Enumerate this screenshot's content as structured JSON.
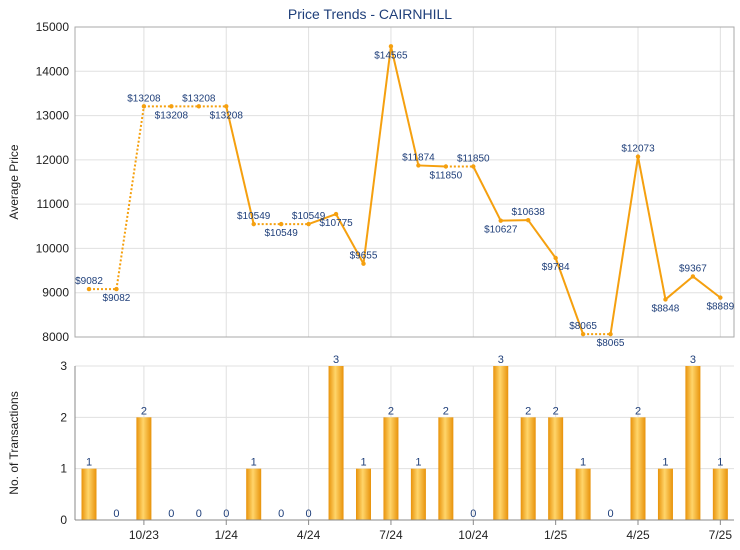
{
  "title": "Price Trends - CAIRNHILL",
  "chart_data": [
    {
      "type": "line",
      "title": "Price Trends - CAIRNHILL",
      "ylabel": "Average Price",
      "ylim": [
        8000,
        15000
      ],
      "yticks": [
        8000,
        9000,
        10000,
        11000,
        12000,
        13000,
        14000,
        15000
      ],
      "grid": true,
      "color": "#f5a00f",
      "values": [
        9082,
        9082,
        13208,
        13208,
        13208,
        13208,
        10549,
        10549,
        10549,
        10775,
        9655,
        14565,
        11874,
        11850,
        11850,
        10627,
        10638,
        9784,
        8065,
        8065,
        12073,
        8848,
        9367,
        8889
      ],
      "labels": [
        "$9082",
        "$9082",
        "$13208",
        "$13208",
        "$13208",
        "$13208",
        "$10549",
        "$10549",
        "$10549",
        "$10775",
        "$9655",
        "$14565",
        "$11874",
        "$11850",
        "$11850",
        "$10627",
        "$10638",
        "$9784",
        "$8065",
        "$8065",
        "$12073",
        "$8848",
        "$9367",
        "$8889"
      ],
      "dotted_segments": [
        0,
        1,
        2,
        3,
        4,
        6,
        7,
        13,
        18
      ]
    },
    {
      "type": "bar",
      "ylabel": "No. of Transactions",
      "ylim": [
        0,
        3
      ],
      "yticks": [
        0,
        1,
        2,
        3
      ],
      "color": "#f5a00f",
      "values": [
        1,
        0,
        2,
        0,
        0,
        0,
        1,
        0,
        0,
        3,
        1,
        2,
        1,
        2,
        0,
        3,
        2,
        2,
        1,
        0,
        2,
        1,
        3,
        1
      ],
      "xtick_labels": [
        "10/23",
        "1/24",
        "4/24",
        "7/24",
        "10/24",
        "1/25",
        "4/25",
        "7/25"
      ],
      "xtick_indices": [
        2,
        5,
        8,
        11,
        14,
        17,
        20,
        23
      ]
    }
  ]
}
